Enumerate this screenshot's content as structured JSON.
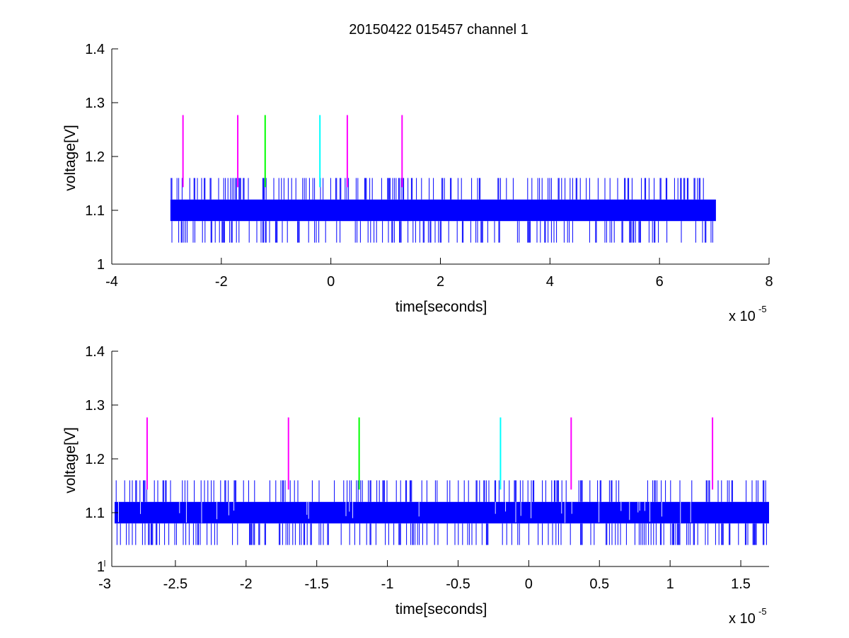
{
  "figure": {
    "title": "20150422 015457 channel 1"
  },
  "colors": {
    "signal": "#0000ff",
    "marker_magenta": "#ff00ff",
    "marker_green": "#00ff00",
    "marker_cyan": "#00ffff",
    "axes": "#000000",
    "background": "#ffffff"
  },
  "chart_data": [
    {
      "type": "line",
      "title": "20150422 015457 channel 1",
      "xlabel": "time[seconds]",
      "ylabel": "voltage[V]",
      "x_multiplier_label": "x 10",
      "x_multiplier_exponent": "-5",
      "xlim": [
        -4,
        8
      ],
      "ylim": [
        1,
        1.4
      ],
      "xticks": [
        -4,
        -2,
        0,
        2,
        4,
        6,
        8
      ],
      "xtick_labels": [
        "-4",
        "-2",
        "0",
        "2",
        "4",
        "6",
        "8"
      ],
      "yticks": [
        1,
        1.1,
        1.2,
        1.3,
        1.4
      ],
      "ytick_labels": [
        "1",
        "1.1",
        "1.2",
        "1.3",
        "1.4"
      ],
      "grid": false,
      "series": [
        {
          "color": "#0000ff",
          "x_range": [
            -2.93,
            7.03
          ],
          "band": [
            1.08,
            1.12
          ],
          "spike_high": 1.16,
          "spike_low": 1.04
        }
      ],
      "markers": [
        {
          "x": -2.7,
          "y": [
            1.143,
            1.277
          ],
          "color": "#ff00ff"
        },
        {
          "x": -1.7,
          "y": [
            1.143,
            1.277
          ],
          "color": "#ff00ff"
        },
        {
          "x": -1.2,
          "y": [
            1.143,
            1.277
          ],
          "color": "#00ff00"
        },
        {
          "x": -0.2,
          "y": [
            1.143,
            1.277
          ],
          "color": "#00ffff"
        },
        {
          "x": 0.3,
          "y": [
            1.143,
            1.277
          ],
          "color": "#ff00ff"
        },
        {
          "x": 1.3,
          "y": [
            1.143,
            1.277
          ],
          "color": "#ff00ff"
        }
      ]
    },
    {
      "type": "line",
      "xlabel": "time[seconds]",
      "ylabel": "voltage[V]",
      "x_multiplier_label": "x 10",
      "x_multiplier_exponent": "-5",
      "xlim": [
        -2.95,
        1.7
      ],
      "ylim": [
        1,
        1.4
      ],
      "xticks": [
        -3,
        -2.5,
        -2,
        -1.5,
        -1,
        -0.5,
        0,
        0.5,
        1,
        1.5
      ],
      "xtick_labels": [
        "-3",
        "-2.5",
        "-2",
        "-1.5",
        "-1",
        "-0.5",
        "0",
        "0.5",
        "1",
        "1.5"
      ],
      "yticks": [
        1,
        1.1,
        1.2,
        1.3,
        1.4
      ],
      "ytick_labels": [
        "1",
        "1.1",
        "1.2",
        "1.3",
        "1.4"
      ],
      "grid": false,
      "series": [
        {
          "color": "#0000ff",
          "x_range": [
            -2.93,
            1.7
          ],
          "band": [
            1.08,
            1.12
          ],
          "spike_high": 1.16,
          "spike_low": 1.04
        }
      ],
      "markers": [
        {
          "x": -2.7,
          "y": [
            1.143,
            1.277
          ],
          "color": "#ff00ff"
        },
        {
          "x": -1.7,
          "y": [
            1.143,
            1.277
          ],
          "color": "#ff00ff"
        },
        {
          "x": -1.2,
          "y": [
            1.143,
            1.277
          ],
          "color": "#00ff00"
        },
        {
          "x": -0.2,
          "y": [
            1.143,
            1.277
          ],
          "color": "#00ffff"
        },
        {
          "x": 0.3,
          "y": [
            1.143,
            1.277
          ],
          "color": "#ff00ff"
        },
        {
          "x": 1.3,
          "y": [
            1.143,
            1.277
          ],
          "color": "#ff00ff"
        }
      ]
    }
  ]
}
